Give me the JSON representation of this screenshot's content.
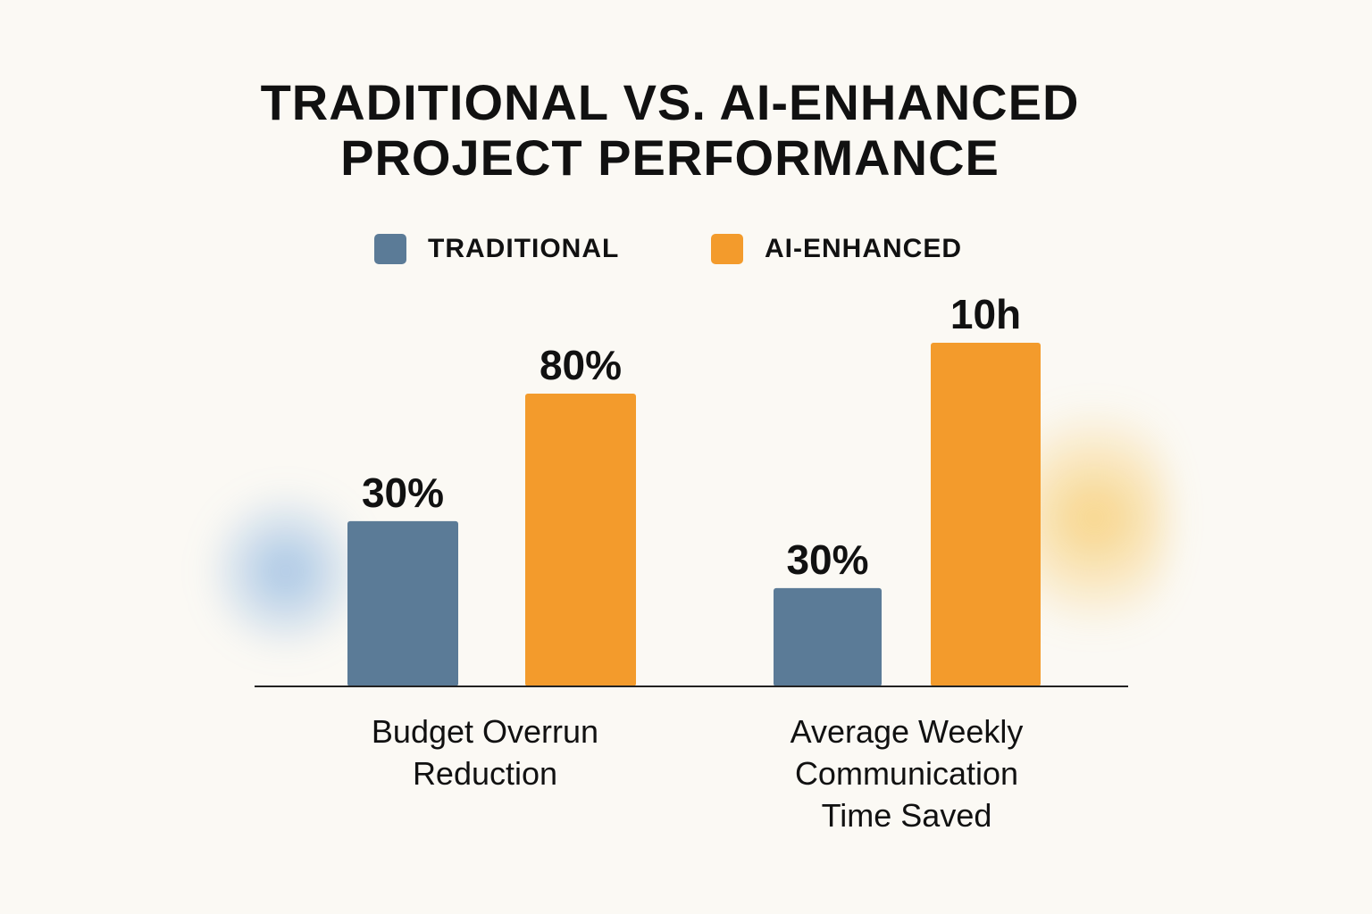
{
  "chart_data": {
    "type": "bar",
    "title": "TRADITIONAL VS. AI-ENHANCED PROJECT PERFORMANCE",
    "title_lines": [
      "TRADITIONAL VS. AI-ENHANCED",
      "PROJECT PERFORMANCE"
    ],
    "categories": [
      "Budget Overrun Reduction",
      "Average Weekly Communication Time Saved"
    ],
    "category_lines": [
      [
        "Budget Overrun",
        "Reduction"
      ],
      [
        "Average Weekly",
        "Communication",
        "Time Saved"
      ]
    ],
    "series": [
      {
        "name": "TRADITIONAL",
        "values": [
          30,
          30
        ],
        "labels": [
          "30%",
          "30%"
        ],
        "color": "#5b7b97"
      },
      {
        "name": "AI-ENHANCED",
        "values": [
          80,
          10
        ],
        "labels": [
          "80%",
          "10h"
        ],
        "color": "#f39b2c"
      }
    ],
    "legend": "top",
    "grid": false,
    "xlabel": "",
    "ylabel": ""
  }
}
